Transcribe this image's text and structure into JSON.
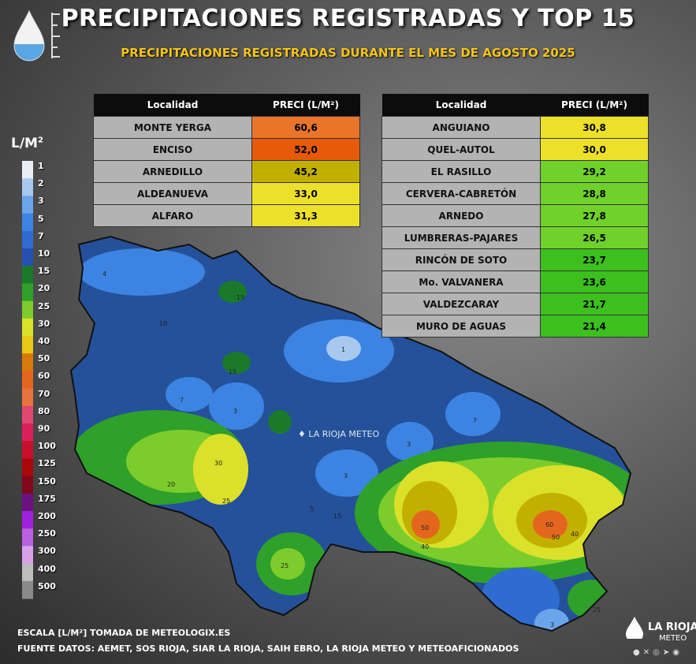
{
  "header": {
    "title": "PRECIPITACIONES REGISTRADAS Y TOP 15",
    "subtitle": "PRECIPITACIONES REGISTRADAS DURANTE EL MES DE AGOSTO 2025"
  },
  "tables": {
    "col_location": "Localidad",
    "col_value": "PRECI (L/M²)",
    "left": [
      {
        "loc": "MONTE YERGA",
        "val": "60,6",
        "color": "#e8752a"
      },
      {
        "loc": "ENCISO",
        "val": "52,0",
        "color": "#e65a0a"
      },
      {
        "loc": "ARNEDILLO",
        "val": "45,2",
        "color": "#c2b000"
      },
      {
        "loc": "ALDEANUEVA",
        "val": "33,0",
        "color": "#ede02a"
      },
      {
        "loc": "ALFARO",
        "val": "31,3",
        "color": "#ede02a"
      }
    ],
    "right": [
      {
        "loc": "ANGUIANO",
        "val": "30,8",
        "color": "#ede02a"
      },
      {
        "loc": "QUEL-AUTOL",
        "val": "30,0",
        "color": "#ede02a"
      },
      {
        "loc": "EL RASILLO",
        "val": "29,2",
        "color": "#6fd12a"
      },
      {
        "loc": "CERVERA-CABRETÓN",
        "val": "28,8",
        "color": "#6fd12a"
      },
      {
        "loc": "ARNEDO",
        "val": "27,8",
        "color": "#6fd12a"
      },
      {
        "loc": "LUMBRERAS-PAJARES",
        "val": "26,5",
        "color": "#6fd12a"
      },
      {
        "loc": "RINCÓN DE SOTO",
        "val": "23,7",
        "color": "#3cc01e"
      },
      {
        "loc": "Mo. VALVANERA",
        "val": "23,6",
        "color": "#3cc01e"
      },
      {
        "loc": "VALDEZCARAY",
        "val": "21,7",
        "color": "#3cc01e"
      },
      {
        "loc": "MURO DE AGUAS",
        "val": "21,4",
        "color": "#3cc01e"
      }
    ]
  },
  "legend": {
    "unit": "L/M",
    "unit_sup": "2",
    "levels": [
      "1",
      "2",
      "3",
      "5",
      "7",
      "10",
      "15",
      "20",
      "25",
      "30",
      "40",
      "50",
      "60",
      "70",
      "80",
      "90",
      "100",
      "125",
      "150",
      "175",
      "200",
      "250",
      "300",
      "400",
      "500"
    ],
    "colors": [
      "#e9eef5",
      "#a8c8ee",
      "#6aa5ea",
      "#3d84e2",
      "#2f6cd2",
      "#2451b2",
      "#1a7a2a",
      "#2fa02a",
      "#7ccd2c",
      "#dbe02a",
      "#e8c814",
      "#d87a0a",
      "#e4661e",
      "#e8743c",
      "#e04870",
      "#d8205a",
      "#c8102a",
      "#a8080a",
      "#800818",
      "#6a1280",
      "#a020e0",
      "#b860e0",
      "#d8a0e8",
      "#bdbdbd",
      "#8a8a8a"
    ]
  },
  "map_labels": {
    "watermark": "LA RIOJA METEO",
    "contours": [
      "4",
      "3",
      "1",
      "3",
      "3",
      "3",
      "3",
      "3",
      "5",
      "7",
      "10",
      "15",
      "15",
      "15",
      "15",
      "30",
      "25",
      "25",
      "50",
      "40",
      "60",
      "50",
      "40",
      "25",
      "7",
      "5",
      "20",
      "10",
      "4"
    ]
  },
  "footer": {
    "scale_note": "ESCALA [L/M²] TOMADA DE METEOLOGIX.ES",
    "sources": "FUENTE DATOS: AEMET, SOS RIOJA, SIAR LA RIOJA, SAIH EBRO, LA RIOJA METEO  Y METEOAFICIONADOS",
    "brand_name": "LA RIOJA",
    "brand_sub": "METEO"
  }
}
